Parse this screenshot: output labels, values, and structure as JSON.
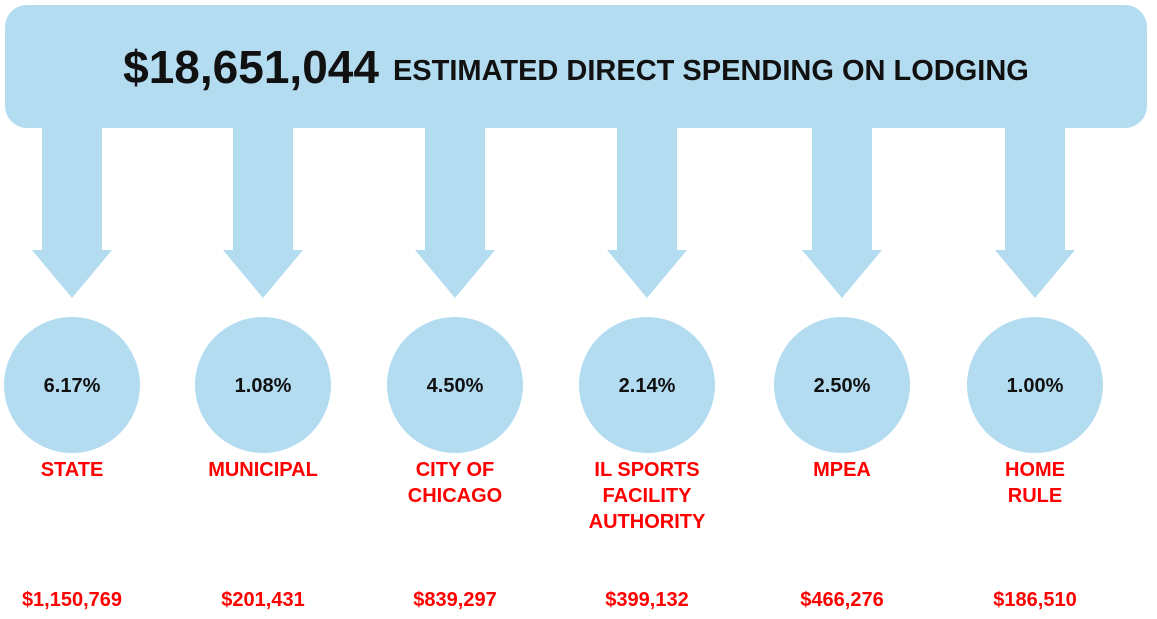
{
  "header": {
    "total": "$18,651,044",
    "label": "ESTIMATED DIRECT SPENDING ON LODGING"
  },
  "items": [
    {
      "rate": "6.17%",
      "name": [
        "STATE"
      ],
      "amount": "$1,150,769"
    },
    {
      "rate": "1.08%",
      "name": [
        "MUNICIPAL"
      ],
      "amount": "$201,431"
    },
    {
      "rate": "4.50%",
      "name": [
        "CITY OF",
        "CHICAGO"
      ],
      "amount": "$839,297"
    },
    {
      "rate": "2.14%",
      "name": [
        "IL SPORTS",
        "FACILITY",
        "AUTHORITY"
      ],
      "amount": "$399,132"
    },
    {
      "rate": "2.50%",
      "name": [
        "MPEA"
      ],
      "amount": "$466,276"
    },
    {
      "rate": "1.00%",
      "name": [
        "HOME",
        "RULE"
      ],
      "amount": "$186,510"
    }
  ]
}
